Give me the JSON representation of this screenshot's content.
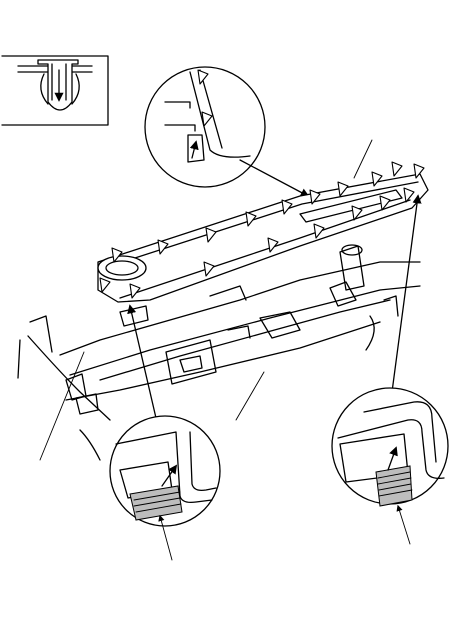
{
  "diagram": {
    "style": "line-art",
    "colors": {
      "ink": "#000000",
      "paper": "#ffffff",
      "shade": "#bdbdbd"
    },
    "icons": [
      "clip-detail-icon",
      "clip-marker-icon",
      "callout-arrow-icon",
      "push-direction-icon"
    ]
  }
}
